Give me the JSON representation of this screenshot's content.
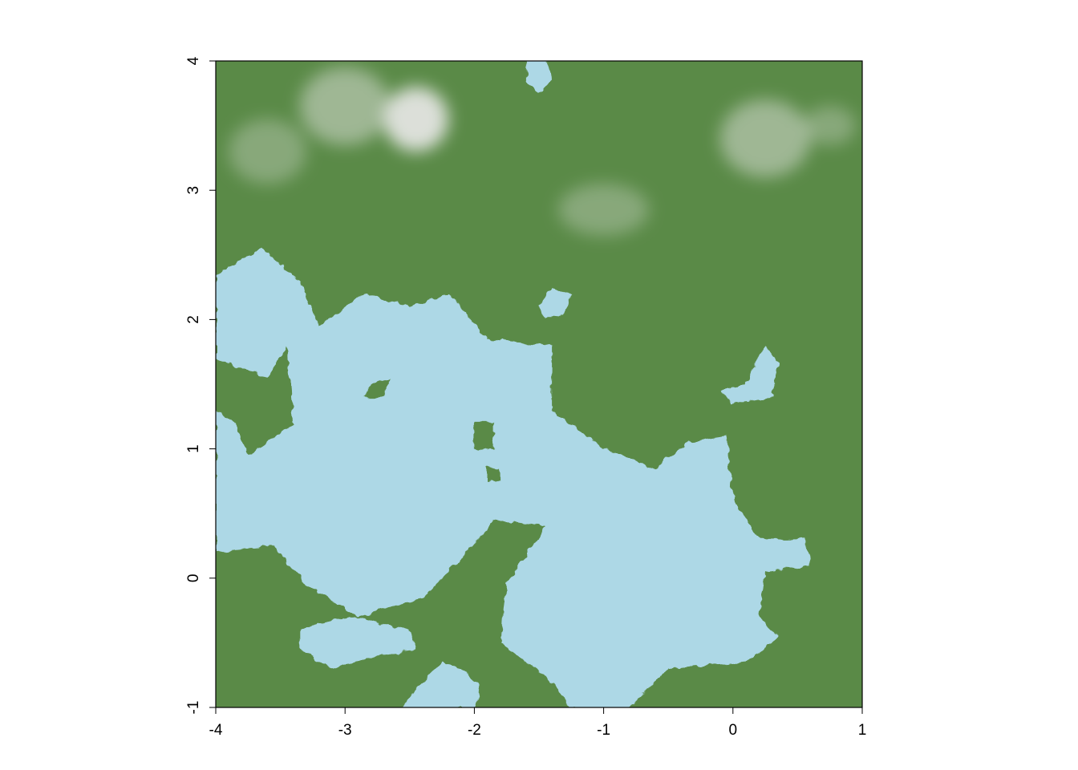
{
  "chart_data": {
    "type": "heatmap",
    "title": "",
    "xlabel": "",
    "ylabel": "",
    "xlim": [
      -4,
      1
    ],
    "ylim": [
      -1,
      4
    ],
    "x_ticks": [
      -4,
      -3,
      -2,
      -1,
      0,
      1
    ],
    "y_ticks": [
      -1,
      0,
      1,
      2,
      3,
      4
    ],
    "x_tick_labels": [
      "-4",
      "-3",
      "-2",
      "-1",
      "0",
      "1"
    ],
    "y_tick_labels": [
      "-1",
      "0",
      "1",
      "2",
      "3",
      "4"
    ],
    "grid": false,
    "legend": "none",
    "colors": {
      "water": "#add8e6",
      "land": "#5a8a47",
      "land_dark": "#4d7a3e",
      "snow": "#f2eef2",
      "axis": "#000000"
    },
    "water_regions": [
      {
        "name": "large central water body",
        "polygon": [
          [
            -4,
            2.35
          ],
          [
            -3.65,
            2.55
          ],
          [
            -3.35,
            2.3
          ],
          [
            -3.2,
            1.95
          ],
          [
            -2.85,
            2.2
          ],
          [
            -2.5,
            2.1
          ],
          [
            -2.2,
            2.2
          ],
          [
            -1.9,
            1.85
          ],
          [
            -1.4,
            1.8
          ],
          [
            -1.4,
            1.3
          ],
          [
            -1.0,
            1.0
          ],
          [
            -0.6,
            0.85
          ],
          [
            -0.35,
            1.05
          ],
          [
            -0.05,
            1.1
          ],
          [
            0.0,
            0.6
          ],
          [
            0.2,
            0.3
          ],
          [
            0.55,
            0.3
          ],
          [
            0.6,
            0.1
          ],
          [
            0.25,
            0.05
          ],
          [
            0.2,
            -0.3
          ],
          [
            0.35,
            -0.45
          ],
          [
            0.1,
            -0.65
          ],
          [
            -0.5,
            -0.7
          ],
          [
            -0.8,
            -1.0
          ],
          [
            -1.25,
            -1.0
          ],
          [
            -1.45,
            -0.75
          ],
          [
            -1.8,
            -0.5
          ],
          [
            -1.75,
            -0.05
          ],
          [
            -1.45,
            0.4
          ],
          [
            -1.85,
            0.45
          ],
          [
            -2.1,
            0.15
          ],
          [
            -2.4,
            -0.15
          ],
          [
            -2.9,
            -0.3
          ],
          [
            -3.3,
            -0.05
          ],
          [
            -3.55,
            0.25
          ],
          [
            -4,
            0.2
          ]
        ]
      },
      {
        "name": "east lake",
        "polygon": [
          [
            0.1,
            1.5
          ],
          [
            0.25,
            1.8
          ],
          [
            0.35,
            1.65
          ],
          [
            0.3,
            1.4
          ],
          [
            0.0,
            1.35
          ],
          [
            -0.1,
            1.45
          ]
        ]
      },
      {
        "name": "southwest lake",
        "polygon": [
          [
            -3.35,
            -0.4
          ],
          [
            -3.2,
            -0.35
          ],
          [
            -2.95,
            -0.3
          ],
          [
            -2.5,
            -0.4
          ],
          [
            -2.45,
            -0.55
          ],
          [
            -2.75,
            -0.6
          ],
          [
            -3.1,
            -0.7
          ],
          [
            -3.35,
            -0.55
          ]
        ]
      },
      {
        "name": "south lake",
        "polygon": [
          [
            -2.55,
            -1.0
          ],
          [
            -2.45,
            -0.85
          ],
          [
            -2.25,
            -0.65
          ],
          [
            -2.1,
            -0.7
          ],
          [
            -1.95,
            -0.85
          ],
          [
            -2.0,
            -1.0
          ]
        ]
      },
      {
        "name": "north inlet",
        "polygon": [
          [
            -1.6,
            4.0
          ],
          [
            -1.45,
            4.0
          ],
          [
            -1.4,
            3.85
          ],
          [
            -1.5,
            3.75
          ],
          [
            -1.6,
            3.85
          ]
        ]
      },
      {
        "name": "small pond",
        "polygon": [
          [
            -1.5,
            2.1
          ],
          [
            -1.4,
            2.25
          ],
          [
            -1.25,
            2.2
          ],
          [
            -1.3,
            2.05
          ],
          [
            -1.45,
            2.0
          ]
        ]
      }
    ],
    "land_patches": [
      {
        "name": "west green patch",
        "polygon": [
          [
            -4,
            1.7
          ],
          [
            -3.6,
            1.55
          ],
          [
            -3.45,
            1.8
          ],
          [
            -3.4,
            1.2
          ],
          [
            -3.6,
            1.05
          ],
          [
            -3.75,
            0.95
          ],
          [
            -3.85,
            1.2
          ],
          [
            -4,
            1.3
          ]
        ]
      },
      {
        "name": "central green patch",
        "polygon": [
          [
            -2.8,
            1.5
          ],
          [
            -2.65,
            1.55
          ],
          [
            -2.7,
            1.4
          ],
          [
            -2.85,
            1.4
          ]
        ]
      },
      {
        "name": "mid green patch",
        "polygon": [
          [
            -2.0,
            1.2
          ],
          [
            -1.85,
            1.2
          ],
          [
            -1.85,
            1.0
          ],
          [
            -2.0,
            1.0
          ]
        ]
      },
      {
        "name": "green speck",
        "polygon": [
          [
            -1.9,
            0.85
          ],
          [
            -1.8,
            0.85
          ],
          [
            -1.8,
            0.75
          ],
          [
            -1.9,
            0.75
          ]
        ]
      }
    ],
    "snow_regions": [
      {
        "name": "northwest peaks",
        "cx": -2.45,
        "cy": 3.55,
        "rx": 0.25,
        "ry": 0.25,
        "intensity": 0.85
      },
      {
        "name": "northwest ridge",
        "cx": -3.0,
        "cy": 3.65,
        "rx": 0.35,
        "ry": 0.3,
        "intensity": 0.45
      },
      {
        "name": "far west ridge",
        "cx": -3.6,
        "cy": 3.3,
        "rx": 0.3,
        "ry": 0.25,
        "intensity": 0.3
      },
      {
        "name": "north central hills",
        "cx": -1.0,
        "cy": 2.85,
        "rx": 0.35,
        "ry": 0.2,
        "intensity": 0.3
      },
      {
        "name": "northeast peaks",
        "cx": 0.25,
        "cy": 3.4,
        "rx": 0.35,
        "ry": 0.3,
        "intensity": 0.45
      },
      {
        "name": "northeast ridge",
        "cx": 0.75,
        "cy": 3.5,
        "rx": 0.2,
        "ry": 0.15,
        "intensity": 0.3
      }
    ]
  }
}
